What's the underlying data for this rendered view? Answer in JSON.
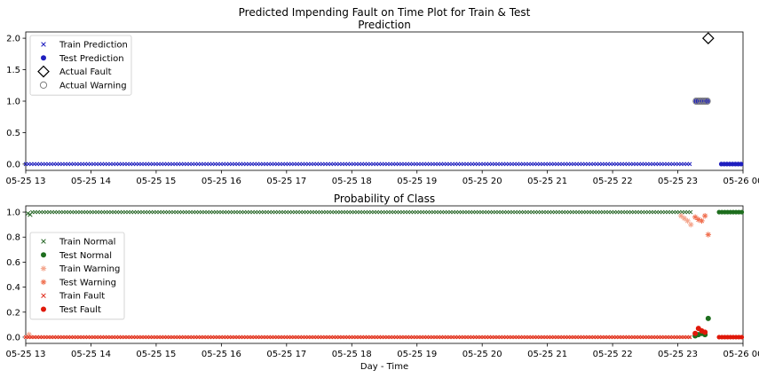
{
  "figure_title": "Predicted Impending Fault on Time Plot for Train & Test",
  "x_tick_labels": [
    "05-25 13",
    "05-25 14",
    "05-25 15",
    "05-25 16",
    "05-25 17",
    "05-25 18",
    "05-25 19",
    "05-25 20",
    "05-25 21",
    "05-25 22",
    "05-25 23",
    "05-26 00"
  ],
  "chart_data": [
    {
      "type": "scatter",
      "title": "Prediction",
      "xlabel": "",
      "ylabel": "",
      "x_range": [
        "05-25 13:00",
        "05-26 00:00"
      ],
      "ylim": [
        -0.1,
        2.1
      ],
      "y_ticks": [
        "0.0",
        "0.5",
        "1.0",
        "1.5",
        "2.0"
      ],
      "legend_position": "top-left",
      "series": [
        {
          "name": "Train Prediction",
          "marker": "x",
          "color": "#1f1fbf",
          "segments": [
            {
              "x_from": "05-25 13:00",
              "x_to": "05-25 23:12",
              "y": 0
            }
          ]
        },
        {
          "name": "Test Prediction",
          "marker": "circle",
          "color": "#1f1fbf",
          "segments": [
            {
              "x_from": "05-25 23:40",
              "x_to": "05-26 00:00",
              "y": 0
            }
          ],
          "points": [
            {
              "x": "05-25 23:17",
              "y": 1
            },
            {
              "x": "05-25 23:19",
              "y": 1
            },
            {
              "x": "05-25 23:21",
              "y": 1
            },
            {
              "x": "05-25 23:23",
              "y": 1
            },
            {
              "x": "05-25 23:25",
              "y": 1
            },
            {
              "x": "05-25 23:27",
              "y": 1
            }
          ]
        },
        {
          "name": "Actual Fault",
          "marker": "diamond",
          "color": "#000000",
          "points": [
            {
              "x": "05-25 23:28",
              "y": 2
            }
          ]
        },
        {
          "name": "Actual Warning",
          "marker": "open-circle",
          "color": "#808080",
          "points": [
            {
              "x": "05-25 23:17",
              "y": 1
            },
            {
              "x": "05-25 23:19",
              "y": 1
            },
            {
              "x": "05-25 23:21",
              "y": 1
            },
            {
              "x": "05-25 23:23",
              "y": 1
            },
            {
              "x": "05-25 23:25",
              "y": 1
            },
            {
              "x": "05-25 23:27",
              "y": 1
            }
          ]
        }
      ]
    },
    {
      "type": "scatter",
      "title": "Probability of Class",
      "xlabel": "Day - Time",
      "ylabel": "",
      "x_range": [
        "05-25 13:00",
        "05-26 00:00"
      ],
      "ylim": [
        -0.05,
        1.05
      ],
      "y_ticks": [
        "0.0",
        "0.2",
        "0.4",
        "0.6",
        "0.8",
        "1.0"
      ],
      "legend_position": "center-left",
      "series": [
        {
          "name": "Train Normal",
          "marker": "x",
          "color": "#2e6b2e",
          "segments": [
            {
              "x_from": "05-25 13:06",
              "x_to": "05-25 23:12",
              "y": 1.0
            }
          ],
          "points": [
            {
              "x": "05-25 13:02",
              "y": 0.99
            },
            {
              "x": "05-25 13:04",
              "y": 0.98
            }
          ]
        },
        {
          "name": "Test Normal",
          "marker": "circle",
          "color": "#1e6e1e",
          "segments": [
            {
              "x_from": "05-25 23:38",
              "x_to": "05-26 00:00",
              "y": 1.0
            }
          ],
          "points": [
            {
              "x": "05-25 23:16",
              "y": 0.01
            },
            {
              "x": "05-25 23:19",
              "y": 0.02
            },
            {
              "x": "05-25 23:22",
              "y": 0.03
            },
            {
              "x": "05-25 23:25",
              "y": 0.02
            },
            {
              "x": "05-25 23:28",
              "y": 0.15
            }
          ]
        },
        {
          "name": "Train Warning",
          "marker": "star",
          "color": "#f4a58c",
          "segments": [
            {
              "x_from": "05-25 13:00",
              "x_to": "05-25 23:12",
              "y": 0.0
            }
          ],
          "points": [
            {
              "x": "05-25 13:03",
              "y": 0.02
            },
            {
              "x": "05-25 23:03",
              "y": 0.97
            },
            {
              "x": "05-25 23:06",
              "y": 0.95
            },
            {
              "x": "05-25 23:09",
              "y": 0.93
            },
            {
              "x": "05-25 23:12",
              "y": 0.9
            }
          ]
        },
        {
          "name": "Test Warning",
          "marker": "star",
          "color": "#f07050",
          "segments": [
            {
              "x_from": "05-25 23:38",
              "x_to": "05-26 00:00",
              "y": 0.0
            }
          ],
          "points": [
            {
              "x": "05-25 23:16",
              "y": 0.96
            },
            {
              "x": "05-25 23:19",
              "y": 0.94
            },
            {
              "x": "05-25 23:22",
              "y": 0.93
            },
            {
              "x": "05-25 23:25",
              "y": 0.97
            },
            {
              "x": "05-25 23:28",
              "y": 0.82
            }
          ]
        },
        {
          "name": "Train Fault",
          "marker": "x",
          "color": "#e02b1b",
          "segments": [
            {
              "x_from": "05-25 13:00",
              "x_to": "05-25 23:12",
              "y": 0.0
            }
          ]
        },
        {
          "name": "Test Fault",
          "marker": "circle",
          "color": "#e0190a",
          "segments": [
            {
              "x_from": "05-25 23:38",
              "x_to": "05-26 00:00",
              "y": 0.0
            }
          ],
          "points": [
            {
              "x": "05-25 23:16",
              "y": 0.03
            },
            {
              "x": "05-25 23:19",
              "y": 0.07
            },
            {
              "x": "05-25 23:22",
              "y": 0.05
            },
            {
              "x": "05-25 23:25",
              "y": 0.04
            }
          ]
        }
      ]
    }
  ]
}
